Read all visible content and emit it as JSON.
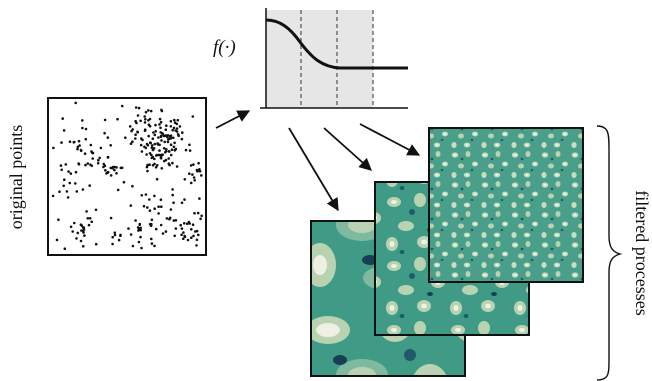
{
  "labels": {
    "original_points": "original points",
    "filter_function": "f(·)",
    "filtered_processes": "filtered processes"
  },
  "colors": {
    "ink": "#111111",
    "plot_band": "#e6e6e6",
    "field_dark": "#163f55",
    "field_mid": "#3f9b86",
    "field_light": "#b9d3b2",
    "field_pale": "#eef0e2"
  }
}
